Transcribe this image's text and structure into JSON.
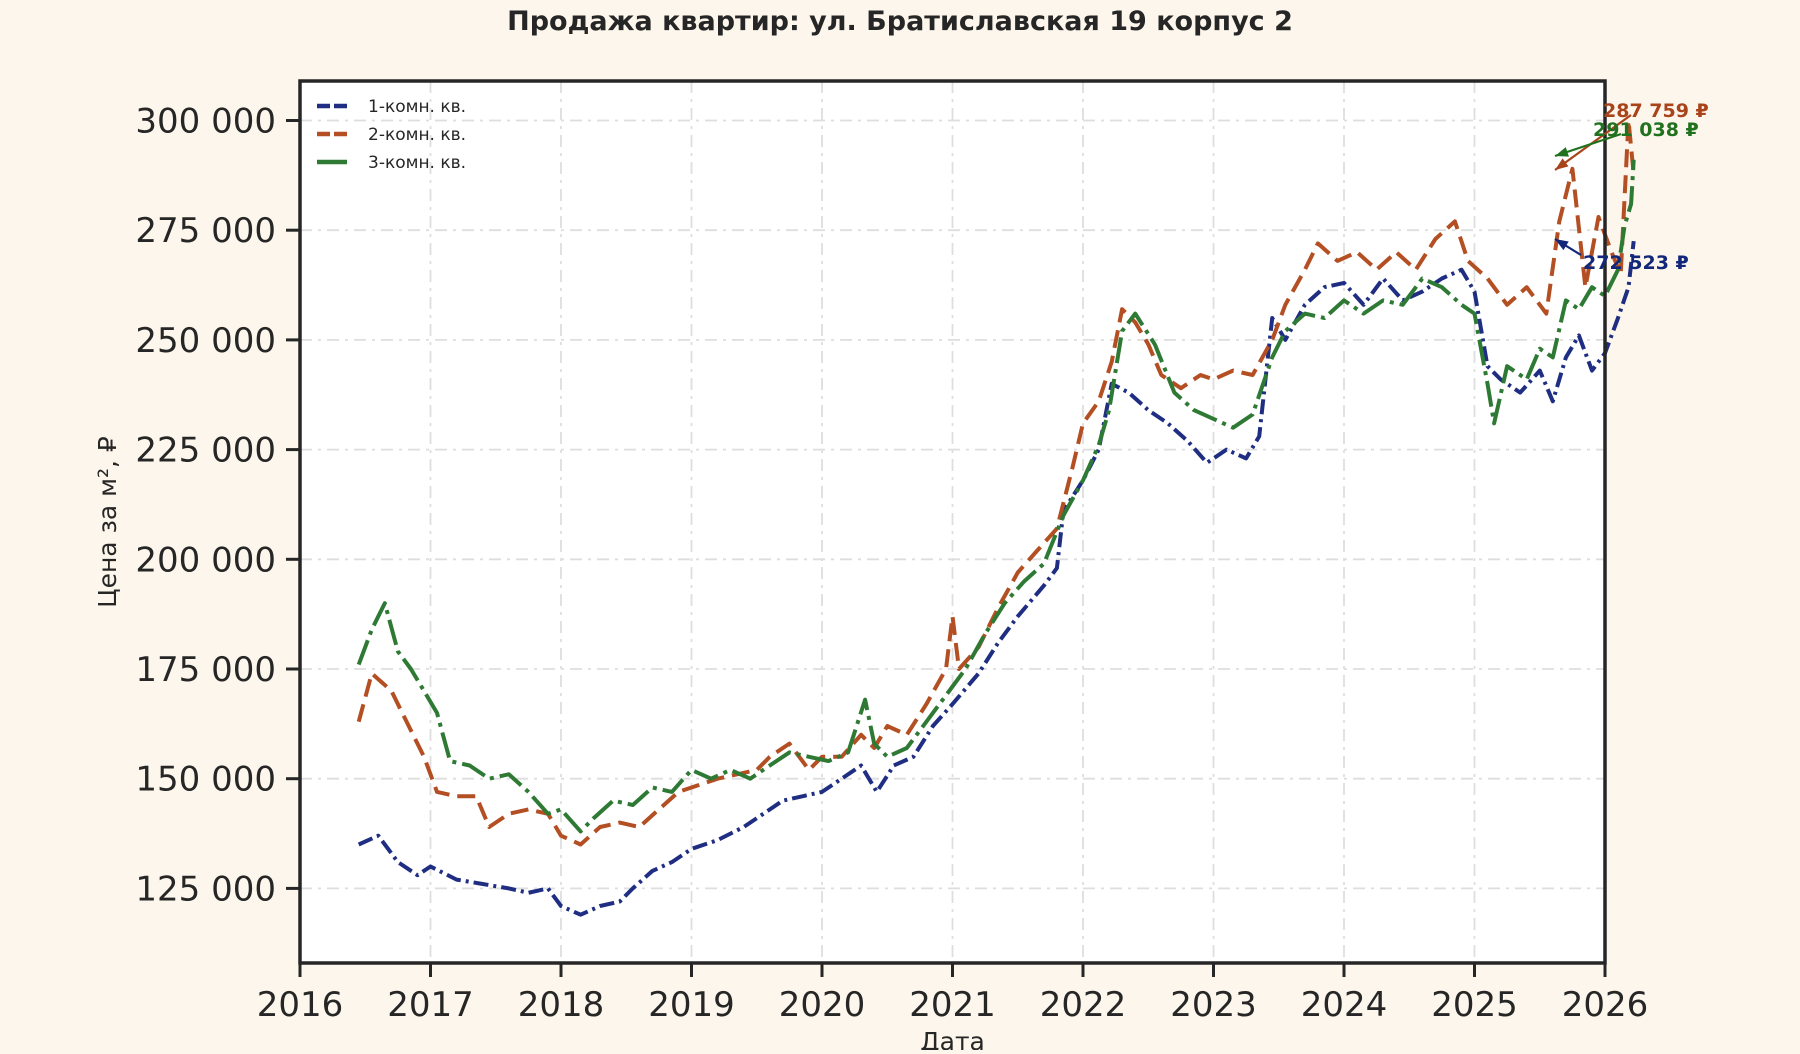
{
  "chart_data": {
    "type": "line",
    "title": "Продажа квартир: ул. Братиславская 19 корпус 2",
    "xlabel": "Дата",
    "ylabel": "Цена за м², ₽",
    "xlim": [
      2016,
      2026
    ],
    "ylim": [
      108000,
      309000
    ],
    "x_ticks": [
      "2016",
      "2017",
      "2018",
      "2019",
      "2020",
      "2021",
      "2022",
      "2023",
      "2024",
      "2025",
      "2026"
    ],
    "y_ticks": [
      "125 000",
      "150 000",
      "175 000",
      "200 000",
      "225 000",
      "250 000",
      "275 000",
      "300 000"
    ],
    "grid": true,
    "legend_position": "top-left",
    "series": [
      {
        "name": "1-комн. кв.",
        "color": "#1f2e82",
        "dash": "15,5,3,5",
        "points": [
          [
            2016.45,
            135000
          ],
          [
            2016.6,
            137000
          ],
          [
            2016.75,
            131000
          ],
          [
            2016.9,
            128000
          ],
          [
            2017.0,
            130000
          ],
          [
            2017.2,
            127000
          ],
          [
            2017.4,
            126000
          ],
          [
            2017.6,
            125000
          ],
          [
            2017.75,
            124000
          ],
          [
            2017.9,
            125000
          ],
          [
            2018.0,
            121000
          ],
          [
            2018.15,
            119000
          ],
          [
            2018.3,
            121000
          ],
          [
            2018.45,
            122000
          ],
          [
            2018.55,
            125000
          ],
          [
            2018.7,
            129000
          ],
          [
            2018.85,
            131000
          ],
          [
            2019.0,
            134000
          ],
          [
            2019.2,
            136000
          ],
          [
            2019.4,
            139000
          ],
          [
            2019.55,
            142000
          ],
          [
            2019.7,
            145000
          ],
          [
            2019.85,
            146000
          ],
          [
            2020.0,
            147000
          ],
          [
            2020.15,
            150000
          ],
          [
            2020.3,
            153000
          ],
          [
            2020.42,
            147000
          ],
          [
            2020.55,
            153000
          ],
          [
            2020.7,
            155000
          ],
          [
            2020.85,
            162000
          ],
          [
            2021.0,
            167000
          ],
          [
            2021.2,
            174000
          ],
          [
            2021.35,
            181000
          ],
          [
            2021.5,
            187000
          ],
          [
            2021.7,
            194000
          ],
          [
            2021.8,
            198000
          ],
          [
            2021.85,
            211000
          ],
          [
            2022.0,
            218000
          ],
          [
            2022.12,
            225000
          ],
          [
            2022.22,
            240000
          ],
          [
            2022.35,
            238000
          ],
          [
            2022.5,
            234000
          ],
          [
            2022.65,
            231000
          ],
          [
            2022.8,
            227000
          ],
          [
            2022.95,
            222000
          ],
          [
            2023.1,
            225000
          ],
          [
            2023.25,
            223000
          ],
          [
            2023.35,
            228000
          ],
          [
            2023.45,
            255000
          ],
          [
            2023.55,
            250000
          ],
          [
            2023.7,
            258000
          ],
          [
            2023.85,
            262000
          ],
          [
            2024.0,
            263000
          ],
          [
            2024.15,
            258000
          ],
          [
            2024.3,
            264000
          ],
          [
            2024.45,
            259000
          ],
          [
            2024.6,
            261000
          ],
          [
            2024.75,
            264000
          ],
          [
            2024.9,
            266000
          ],
          [
            2025.0,
            261000
          ],
          [
            2025.1,
            244000
          ],
          [
            2025.2,
            241000
          ],
          [
            2025.35,
            238000
          ],
          [
            2025.5,
            243000
          ],
          [
            2025.6,
            236000
          ],
          [
            2025.7,
            246000
          ],
          [
            2025.8,
            251000
          ],
          [
            2025.9,
            243000
          ],
          [
            2026.0,
            247000
          ],
          [
            2026.1,
            255000
          ],
          [
            2026.18,
            262000
          ],
          [
            2026.22,
            272523
          ]
        ]
      },
      {
        "name": "2-комн. кв.",
        "color": "#b34f22",
        "dash": "18,8",
        "points": [
          [
            2016.45,
            163000
          ],
          [
            2016.55,
            174000
          ],
          [
            2016.7,
            170000
          ],
          [
            2016.8,
            164000
          ],
          [
            2016.95,
            155000
          ],
          [
            2017.05,
            147000
          ],
          [
            2017.2,
            146000
          ],
          [
            2017.35,
            146000
          ],
          [
            2017.45,
            139000
          ],
          [
            2017.6,
            142000
          ],
          [
            2017.75,
            143000
          ],
          [
            2017.9,
            142000
          ],
          [
            2018.0,
            137000
          ],
          [
            2018.15,
            135000
          ],
          [
            2018.3,
            139000
          ],
          [
            2018.45,
            140000
          ],
          [
            2018.6,
            139000
          ],
          [
            2018.75,
            143000
          ],
          [
            2018.9,
            147000
          ],
          [
            2019.0,
            148000
          ],
          [
            2019.2,
            150000
          ],
          [
            2019.35,
            151000
          ],
          [
            2019.5,
            152000
          ],
          [
            2019.6,
            155000
          ],
          [
            2019.75,
            158000
          ],
          [
            2019.9,
            152000
          ],
          [
            2020.0,
            155000
          ],
          [
            2020.15,
            155000
          ],
          [
            2020.3,
            160000
          ],
          [
            2020.4,
            157000
          ],
          [
            2020.5,
            162000
          ],
          [
            2020.65,
            160000
          ],
          [
            2020.8,
            167000
          ],
          [
            2020.95,
            175000
          ],
          [
            2021.0,
            187000
          ],
          [
            2021.05,
            175000
          ],
          [
            2021.2,
            180000
          ],
          [
            2021.35,
            189000
          ],
          [
            2021.5,
            197000
          ],
          [
            2021.65,
            202000
          ],
          [
            2021.8,
            207000
          ],
          [
            2021.92,
            221000
          ],
          [
            2022.0,
            231000
          ],
          [
            2022.12,
            236000
          ],
          [
            2022.22,
            245000
          ],
          [
            2022.3,
            257000
          ],
          [
            2022.4,
            254000
          ],
          [
            2022.5,
            249000
          ],
          [
            2022.6,
            242000
          ],
          [
            2022.75,
            239000
          ],
          [
            2022.9,
            242000
          ],
          [
            2023.0,
            241000
          ],
          [
            2023.15,
            243000
          ],
          [
            2023.3,
            242000
          ],
          [
            2023.45,
            250000
          ],
          [
            2023.55,
            258000
          ],
          [
            2023.7,
            266000
          ],
          [
            2023.8,
            272000
          ],
          [
            2023.95,
            268000
          ],
          [
            2024.1,
            270000
          ],
          [
            2024.25,
            266000
          ],
          [
            2024.4,
            270000
          ],
          [
            2024.55,
            266000
          ],
          [
            2024.7,
            273000
          ],
          [
            2024.85,
            277000
          ],
          [
            2024.95,
            268000
          ],
          [
            2025.1,
            264000
          ],
          [
            2025.25,
            258000
          ],
          [
            2025.4,
            262000
          ],
          [
            2025.55,
            256000
          ],
          [
            2025.65,
            277000
          ],
          [
            2025.75,
            289000
          ],
          [
            2025.85,
            262000
          ],
          [
            2025.95,
            278000
          ],
          [
            2026.05,
            270000
          ],
          [
            2026.12,
            265000
          ],
          [
            2026.18,
            300000
          ],
          [
            2026.22,
            287759
          ]
        ]
      },
      {
        "name": "3-комн. кв.",
        "color": "#2e7a34",
        "dash": "26,6,4,6",
        "points": [
          [
            2016.45,
            176000
          ],
          [
            2016.55,
            184000
          ],
          [
            2016.65,
            190000
          ],
          [
            2016.75,
            179000
          ],
          [
            2016.85,
            175000
          ],
          [
            2016.95,
            170000
          ],
          [
            2017.05,
            165000
          ],
          [
            2017.15,
            154000
          ],
          [
            2017.3,
            153000
          ],
          [
            2017.45,
            150000
          ],
          [
            2017.6,
            151000
          ],
          [
            2017.75,
            147000
          ],
          [
            2017.9,
            142000
          ],
          [
            2018.0,
            143000
          ],
          [
            2018.15,
            138000
          ],
          [
            2018.25,
            141000
          ],
          [
            2018.4,
            145000
          ],
          [
            2018.55,
            144000
          ],
          [
            2018.7,
            148000
          ],
          [
            2018.85,
            147000
          ],
          [
            2019.0,
            152000
          ],
          [
            2019.15,
            150000
          ],
          [
            2019.3,
            152000
          ],
          [
            2019.45,
            150000
          ],
          [
            2019.6,
            153000
          ],
          [
            2019.75,
            156000
          ],
          [
            2019.9,
            155000
          ],
          [
            2020.05,
            154000
          ],
          [
            2020.2,
            156000
          ],
          [
            2020.33,
            168000
          ],
          [
            2020.4,
            158000
          ],
          [
            2020.5,
            155000
          ],
          [
            2020.65,
            157000
          ],
          [
            2020.8,
            163000
          ],
          [
            2020.95,
            169000
          ],
          [
            2021.1,
            175000
          ],
          [
            2021.25,
            183000
          ],
          [
            2021.4,
            190000
          ],
          [
            2021.55,
            195000
          ],
          [
            2021.7,
            199000
          ],
          [
            2021.85,
            210000
          ],
          [
            2022.0,
            218000
          ],
          [
            2022.12,
            226000
          ],
          [
            2022.2,
            234000
          ],
          [
            2022.3,
            252000
          ],
          [
            2022.4,
            256000
          ],
          [
            2022.55,
            249000
          ],
          [
            2022.7,
            238000
          ],
          [
            2022.85,
            234000
          ],
          [
            2023.0,
            232000
          ],
          [
            2023.15,
            230000
          ],
          [
            2023.3,
            233000
          ],
          [
            2023.45,
            246000
          ],
          [
            2023.55,
            252000
          ],
          [
            2023.7,
            256000
          ],
          [
            2023.85,
            255000
          ],
          [
            2024.0,
            259000
          ],
          [
            2024.15,
            256000
          ],
          [
            2024.3,
            259000
          ],
          [
            2024.45,
            258000
          ],
          [
            2024.6,
            264000
          ],
          [
            2024.75,
            262000
          ],
          [
            2024.9,
            258000
          ],
          [
            2025.0,
            256000
          ],
          [
            2025.1,
            240000
          ],
          [
            2025.15,
            231000
          ],
          [
            2025.25,
            244000
          ],
          [
            2025.4,
            241000
          ],
          [
            2025.5,
            248000
          ],
          [
            2025.6,
            246000
          ],
          [
            2025.7,
            259000
          ],
          [
            2025.8,
            257000
          ],
          [
            2025.9,
            262000
          ],
          [
            2026.0,
            260000
          ],
          [
            2026.1,
            266000
          ],
          [
            2026.15,
            276000
          ],
          [
            2026.2,
            281000
          ],
          [
            2026.22,
            291038
          ]
        ]
      }
    ],
    "annotations": [
      {
        "text": "272 523 ₽",
        "series": "1-комн. кв.",
        "color": "#13277a"
      },
      {
        "text": "287 759 ₽",
        "series": "2-комн. кв.",
        "color": "#a8431a"
      },
      {
        "text": "291 038 ₽",
        "series": "3-комн. кв.",
        "color": "#20721f"
      }
    ]
  }
}
